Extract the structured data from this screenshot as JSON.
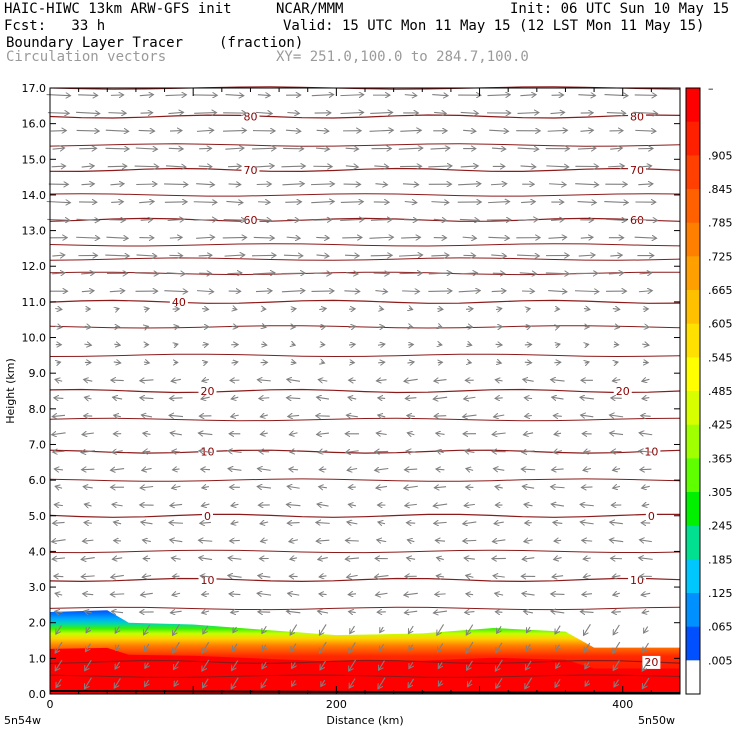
{
  "header": {
    "model_line": "HAIC-HIWC 13km ARW-GFS init",
    "org": "NCAR/MMM",
    "init": "Init: 06 UTC Sun 10 May 15",
    "fcst": "Fcst:   33 h",
    "valid": "Valid: 15 UTC Mon 11 May 15 (12 LST Mon 11 May 15)",
    "field": "Boundary Layer Tracer",
    "field_units": "(fraction)",
    "vectors": "Circulation vectors",
    "xy": "XY= 251.0,100.0 to 284.7,100.0"
  },
  "chart_data": {
    "type": "heatmap",
    "title": "Boundary Layer Tracer",
    "ylabel": "Height (km)",
    "xlabel": "Distance (km)",
    "x_start_label": "5n54w",
    "x_end_label": "5n50w",
    "xlim": [
      0,
      440
    ],
    "ylim": [
      0,
      17
    ],
    "y_ticks": [
      "0.0",
      "1.0",
      "2.0",
      "3.0",
      "4.0",
      "5.0",
      "6.0",
      "7.0",
      "8.0",
      "9.0",
      "10.0",
      "11.0",
      "12.0",
      "13.0",
      "14.0",
      "15.0",
      "16.0",
      "17.0"
    ],
    "x_ticks": [
      0,
      200,
      400
    ],
    "colorbar": {
      "labels": [
        "–",
        ".905",
        ".845",
        ".785",
        ".725",
        ".665",
        ".605",
        ".545",
        ".485",
        ".425",
        ".365",
        ".305",
        ".245",
        ".185",
        ".125",
        ".065",
        ".005"
      ],
      "colors": [
        "#ff0000",
        "#ff2000",
        "#ff4000",
        "#ff6000",
        "#ff8000",
        "#ffa000",
        "#ffc000",
        "#ffe000",
        "#ffff00",
        "#d8ff00",
        "#a0ff00",
        "#60ff00",
        "#00f000",
        "#00e090",
        "#00c8ff",
        "#0090ff",
        "#0050ff",
        "#ffffff"
      ]
    },
    "boundary_layer_top_km": [
      {
        "x": 0,
        "z": 2.3
      },
      {
        "x": 40,
        "z": 2.35
      },
      {
        "x": 55,
        "z": 2.0
      },
      {
        "x": 100,
        "z": 1.95
      },
      {
        "x": 150,
        "z": 1.8
      },
      {
        "x": 200,
        "z": 1.65
      },
      {
        "x": 260,
        "z": 1.7
      },
      {
        "x": 310,
        "z": 1.85
      },
      {
        "x": 360,
        "z": 1.75
      },
      {
        "x": 380,
        "z": 1.3
      },
      {
        "x": 440,
        "z": 1.3
      }
    ],
    "temperature_contours": [
      {
        "label": "80",
        "z": 16.2,
        "label_positions": [
          140,
          410
        ]
      },
      {
        "label": "70",
        "z": 14.7,
        "label_positions": [
          140,
          410
        ]
      },
      {
        "label": "60",
        "z": 13.3,
        "label_positions": [
          140,
          410
        ]
      },
      {
        "label": "40",
        "z": 11.0,
        "label_positions": [
          90
        ]
      },
      {
        "label": "20",
        "z": 8.5,
        "label_positions": [
          110,
          400
        ]
      },
      {
        "label": "10",
        "z": 6.8,
        "label_positions": [
          110,
          420
        ]
      },
      {
        "label": "0",
        "z": 5.0,
        "label_positions": [
          110,
          420
        ]
      },
      {
        "label": "10",
        "z": 3.2,
        "label_positions": [
          110,
          410
        ]
      },
      {
        "label": "20",
        "z": 0.9,
        "label_positions": [
          420
        ]
      }
    ],
    "vector_regimes": [
      {
        "z_min": 11.0,
        "z_max": 17.0,
        "direction": "east",
        "magnitude": "strong"
      },
      {
        "z_min": 9.0,
        "z_max": 11.0,
        "direction": "east",
        "magnitude": "weak"
      },
      {
        "z_min": 2.0,
        "z_max": 9.0,
        "direction": "west",
        "magnitude": "moderate"
      },
      {
        "z_min": 0.0,
        "z_max": 2.0,
        "direction": "southwest",
        "magnitude": "moderate"
      }
    ]
  }
}
